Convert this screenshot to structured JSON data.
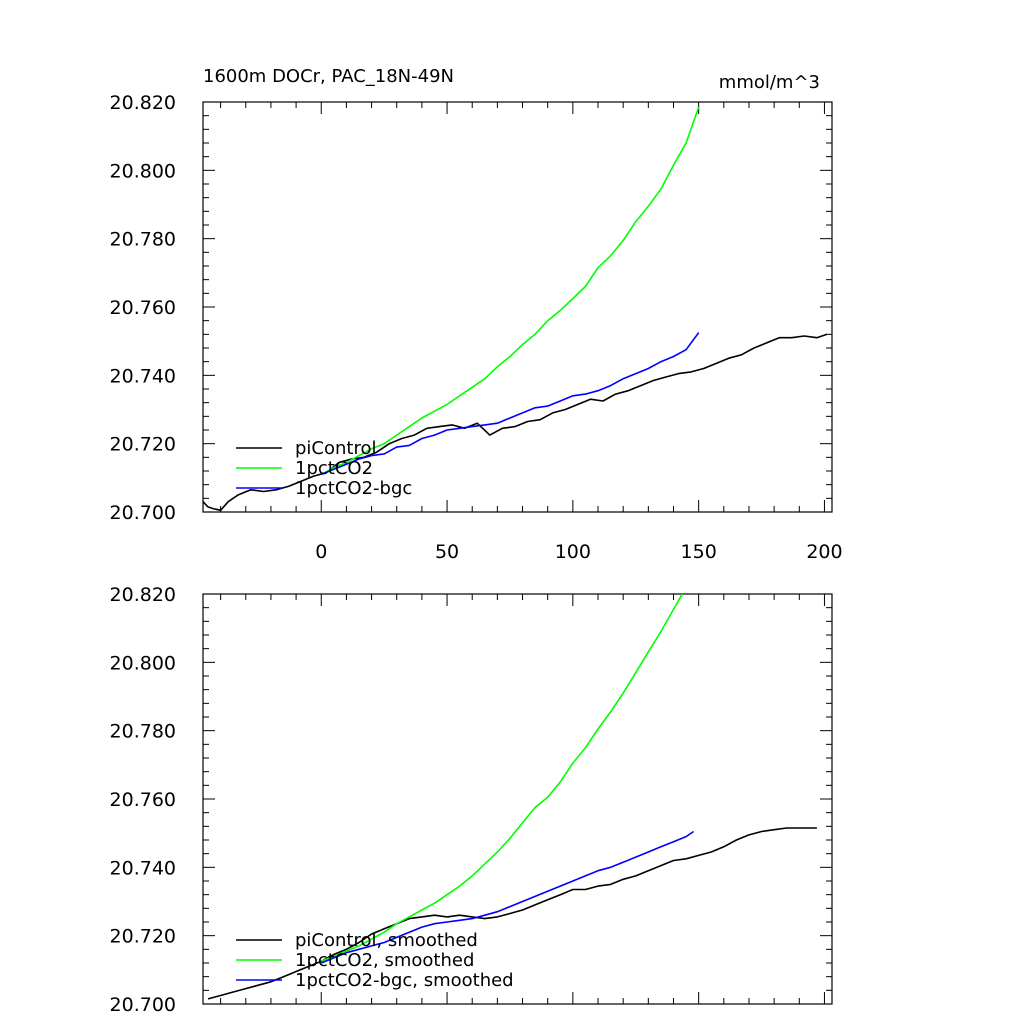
{
  "chart_data": [
    {
      "type": "line",
      "title": "1600m DOCr, PAC_18N-49N",
      "units": "mmol/m^3",
      "xlim": [
        -47,
        203
      ],
      "ylim": [
        20.7,
        20.82
      ],
      "x_ticks": [
        "0",
        "50",
        "100",
        "150",
        "200"
      ],
      "y_ticks": [
        "20.700",
        "20.720",
        "20.740",
        "20.760",
        "20.780",
        "20.800",
        "20.820"
      ],
      "legend_position": "bottom-left",
      "series": [
        {
          "name": "piControl",
          "color": "#000000",
          "points": [
            [
              -47,
              20.703
            ],
            [
              -45,
              20.7015
            ],
            [
              -43,
              20.701
            ],
            [
              -40,
              20.7005
            ],
            [
              -37,
              20.703
            ],
            [
              -33,
              20.705
            ],
            [
              -28,
              20.7065
            ],
            [
              -23,
              20.706
            ],
            [
              -18,
              20.7065
            ],
            [
              -13,
              20.7075
            ],
            [
              -8,
              20.709
            ],
            [
              -3,
              20.7105
            ],
            [
              2,
              20.7115
            ],
            [
              7,
              20.7145
            ],
            [
              12,
              20.7155
            ],
            [
              17,
              20.716
            ],
            [
              22,
              20.7175
            ],
            [
              27,
              20.72
            ],
            [
              32,
              20.7215
            ],
            [
              37,
              20.7225
            ],
            [
              42,
              20.7245
            ],
            [
              47,
              20.725
            ],
            [
              52,
              20.7255
            ],
            [
              57,
              20.7245
            ],
            [
              62,
              20.726
            ],
            [
              67,
              20.7225
            ],
            [
              72,
              20.7245
            ],
            [
              77,
              20.725
            ],
            [
              82,
              20.7265
            ],
            [
              87,
              20.727
            ],
            [
              92,
              20.729
            ],
            [
              97,
              20.73
            ],
            [
              102,
              20.7315
            ],
            [
              107,
              20.733
            ],
            [
              112,
              20.7325
            ],
            [
              117,
              20.7345
            ],
            [
              122,
              20.7355
            ],
            [
              127,
              20.737
            ],
            [
              132,
              20.7385
            ],
            [
              137,
              20.7395
            ],
            [
              142,
              20.7405
            ],
            [
              147,
              20.741
            ],
            [
              152,
              20.742
            ],
            [
              157,
              20.7435
            ],
            [
              162,
              20.745
            ],
            [
              167,
              20.746
            ],
            [
              172,
              20.748
            ],
            [
              177,
              20.7495
            ],
            [
              182,
              20.751
            ],
            [
              187,
              20.751
            ],
            [
              192,
              20.7515
            ],
            [
              197,
              20.751
            ],
            [
              201,
              20.752
            ]
          ]
        },
        {
          "name": "1pctCO2",
          "color": "#00ff00",
          "points": [
            [
              0,
              20.711
            ],
            [
              5,
              20.713
            ],
            [
              10,
              20.7145
            ],
            [
              15,
              20.7165
            ],
            [
              20,
              20.7185
            ],
            [
              25,
              20.72
            ],
            [
              30,
              20.7225
            ],
            [
              35,
              20.725
            ],
            [
              40,
              20.7275
            ],
            [
              45,
              20.7295
            ],
            [
              50,
              20.7315
            ],
            [
              55,
              20.734
            ],
            [
              60,
              20.7365
            ],
            [
              65,
              20.739
            ],
            [
              70,
              20.7425
            ],
            [
              75,
              20.7455
            ],
            [
              80,
              20.749
            ],
            [
              85,
              20.752
            ],
            [
              90,
              20.756
            ],
            [
              95,
              20.759
            ],
            [
              100,
              20.7625
            ],
            [
              105,
              20.766
            ],
            [
              110,
              20.7715
            ],
            [
              115,
              20.775
            ],
            [
              120,
              20.7795
            ],
            [
              125,
              20.785
            ],
            [
              130,
              20.7895
            ],
            [
              135,
              20.7945
            ],
            [
              140,
              20.8015
            ],
            [
              145,
              20.808
            ],
            [
              150,
              20.8185
            ]
          ]
        },
        {
          "name": "1pctCO2-bgc",
          "color": "#0000ff",
          "points": [
            [
              0,
              20.711
            ],
            [
              5,
              20.7125
            ],
            [
              10,
              20.714
            ],
            [
              15,
              20.7155
            ],
            [
              20,
              20.7165
            ],
            [
              25,
              20.717
            ],
            [
              30,
              20.719
            ],
            [
              35,
              20.7195
            ],
            [
              40,
              20.7215
            ],
            [
              45,
              20.7225
            ],
            [
              50,
              20.724
            ],
            [
              55,
              20.7245
            ],
            [
              60,
              20.725
            ],
            [
              65,
              20.7255
            ],
            [
              70,
              20.726
            ],
            [
              75,
              20.7275
            ],
            [
              80,
              20.729
            ],
            [
              85,
              20.7305
            ],
            [
              90,
              20.731
            ],
            [
              95,
              20.7325
            ],
            [
              100,
              20.734
            ],
            [
              105,
              20.7345
            ],
            [
              110,
              20.7355
            ],
            [
              115,
              20.737
            ],
            [
              120,
              20.739
            ],
            [
              125,
              20.7405
            ],
            [
              130,
              20.742
            ],
            [
              135,
              20.744
            ],
            [
              140,
              20.7455
            ],
            [
              145,
              20.7475
            ],
            [
              150,
              20.7525
            ]
          ]
        }
      ]
    },
    {
      "type": "line",
      "xlim": [
        -47,
        203
      ],
      "ylim": [
        20.7,
        20.82
      ],
      "y_ticks": [
        "20.700",
        "20.720",
        "20.740",
        "20.760",
        "20.780",
        "20.800",
        "20.820"
      ],
      "legend_position": "bottom-left",
      "series": [
        {
          "name": "piControl, smoothed",
          "color": "#000000",
          "points": [
            [
              -45,
              20.7015
            ],
            [
              -40,
              20.7025
            ],
            [
              -35,
              20.7035
            ],
            [
              -30,
              20.7045
            ],
            [
              -25,
              20.7055
            ],
            [
              -20,
              20.7065
            ],
            [
              -15,
              20.708
            ],
            [
              -10,
              20.7095
            ],
            [
              -5,
              20.711
            ],
            [
              0,
              20.7125
            ],
            [
              5,
              20.7145
            ],
            [
              10,
              20.716
            ],
            [
              15,
              20.718
            ],
            [
              20,
              20.7205
            ],
            [
              25,
              20.722
            ],
            [
              30,
              20.7235
            ],
            [
              35,
              20.725
            ],
            [
              40,
              20.7255
            ],
            [
              45,
              20.726
            ],
            [
              50,
              20.7255
            ],
            [
              55,
              20.726
            ],
            [
              60,
              20.7255
            ],
            [
              65,
              20.725
            ],
            [
              70,
              20.7255
            ],
            [
              75,
              20.7265
            ],
            [
              80,
              20.7275
            ],
            [
              85,
              20.729
            ],
            [
              90,
              20.7305
            ],
            [
              95,
              20.732
            ],
            [
              100,
              20.7335
            ],
            [
              105,
              20.7335
            ],
            [
              110,
              20.7345
            ],
            [
              115,
              20.735
            ],
            [
              120,
              20.7365
            ],
            [
              125,
              20.7375
            ],
            [
              130,
              20.739
            ],
            [
              135,
              20.7405
            ],
            [
              140,
              20.742
            ],
            [
              145,
              20.7425
            ],
            [
              150,
              20.7435
            ],
            [
              155,
              20.7445
            ],
            [
              160,
              20.746
            ],
            [
              165,
              20.748
            ],
            [
              170,
              20.7495
            ],
            [
              175,
              20.7505
            ],
            [
              180,
              20.751
            ],
            [
              185,
              20.7515
            ],
            [
              190,
              20.7515
            ],
            [
              197,
              20.7515
            ]
          ]
        },
        {
          "name": "1pctCO2, smoothed",
          "color": "#00ff00",
          "points": [
            [
              0,
              20.7125
            ],
            [
              5,
              20.714
            ],
            [
              10,
              20.7155
            ],
            [
              15,
              20.717
            ],
            [
              20,
              20.719
            ],
            [
              25,
              20.721
            ],
            [
              30,
              20.7235
            ],
            [
              35,
              20.7255
            ],
            [
              40,
              20.7275
            ],
            [
              45,
              20.7295
            ],
            [
              50,
              20.732
            ],
            [
              55,
              20.7345
            ],
            [
              60,
              20.7375
            ],
            [
              65,
              20.741
            ],
            [
              70,
              20.7445
            ],
            [
              75,
              20.7485
            ],
            [
              80,
              20.753
            ],
            [
              85,
              20.7575
            ],
            [
              90,
              20.7605
            ],
            [
              95,
              20.765
            ],
            [
              100,
              20.7705
            ],
            [
              105,
              20.775
            ],
            [
              110,
              20.7805
            ],
            [
              115,
              20.7855
            ],
            [
              120,
              20.791
            ],
            [
              125,
              20.797
            ],
            [
              130,
              20.803
            ],
            [
              135,
              20.809
            ],
            [
              140,
              20.8155
            ],
            [
              145,
              20.822
            ],
            [
              148,
              20.8265
            ]
          ]
        },
        {
          "name": "1pctCO2-bgc, smoothed",
          "color": "#0000ff",
          "points": [
            [
              0,
              20.712
            ],
            [
              5,
              20.7135
            ],
            [
              10,
              20.715
            ],
            [
              15,
              20.716
            ],
            [
              20,
              20.717
            ],
            [
              25,
              20.718
            ],
            [
              30,
              20.7195
            ],
            [
              35,
              20.721
            ],
            [
              40,
              20.7225
            ],
            [
              45,
              20.7235
            ],
            [
              50,
              20.724
            ],
            [
              55,
              20.7245
            ],
            [
              60,
              20.725
            ],
            [
              65,
              20.726
            ],
            [
              70,
              20.727
            ],
            [
              75,
              20.7285
            ],
            [
              80,
              20.73
            ],
            [
              85,
              20.7315
            ],
            [
              90,
              20.733
            ],
            [
              95,
              20.7345
            ],
            [
              100,
              20.736
            ],
            [
              105,
              20.7375
            ],
            [
              110,
              20.739
            ],
            [
              115,
              20.74
            ],
            [
              120,
              20.7415
            ],
            [
              125,
              20.743
            ],
            [
              130,
              20.7445
            ],
            [
              135,
              20.746
            ],
            [
              140,
              20.7475
            ],
            [
              145,
              20.749
            ],
            [
              148,
              20.7505
            ]
          ]
        }
      ]
    }
  ]
}
